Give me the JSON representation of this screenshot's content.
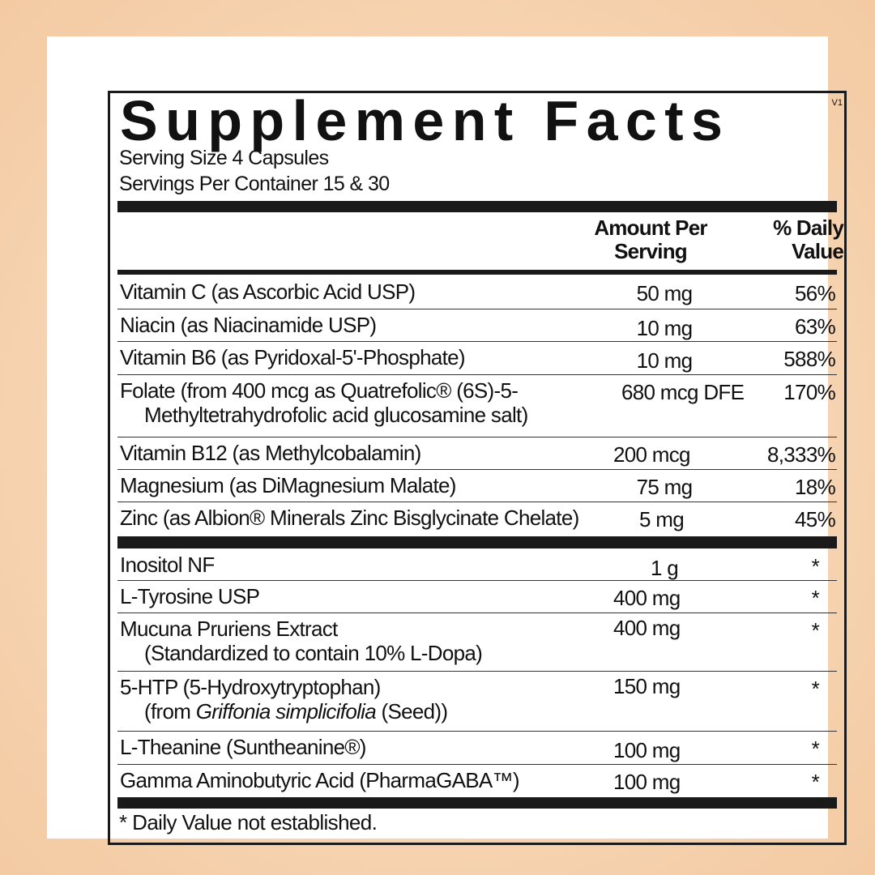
{
  "title": "Supplement Facts",
  "version": "V1",
  "serving_size": "Serving Size 4 Capsules",
  "servings_per_container": "Servings Per Container  15 & 30",
  "headers": {
    "amount_line1": "Amount Per",
    "amount_line2": "Serving",
    "dv_line1": "% Daily",
    "dv_line2": "Value"
  },
  "vitamins": [
    {
      "name": "Vitamin C (as Ascorbic Acid USP)",
      "amount": "50 mg",
      "dv": "56%"
    },
    {
      "name": "Niacin (as Niacinamide USP)",
      "amount": "10 mg",
      "dv": "63%"
    },
    {
      "name": "Vitamin B6 (as Pyridoxal-5'-Phosphate)",
      "amount": "10 mg",
      "dv": "588%"
    },
    {
      "name": "Folate (from 400 mcg as Quatrefolic® (6S)-5-",
      "sub": "Methyltetrahydrofolic acid glucosamine salt)",
      "amount": "680 mcg DFE",
      "dv": "170%"
    },
    {
      "name": "Vitamin B12 (as Methylcobalamin)",
      "amount": "200 mcg",
      "dv": "8,333%"
    },
    {
      "name": "Magnesium (as DiMagnesium Malate)",
      "amount": "75 mg",
      "dv": "18%"
    },
    {
      "name": "Zinc (as Albion® Minerals Zinc Bisglycinate Chelate)",
      "amount": "5 mg",
      "dv": "45%"
    }
  ],
  "others": [
    {
      "name": "Inositol NF",
      "amount": "1 g",
      "dv": "*"
    },
    {
      "name": "L-Tyrosine USP",
      "amount": "400 mg",
      "dv": "*"
    },
    {
      "name": "Mucuna Pruriens Extract",
      "sub": "(Standardized to contain 10% L-Dopa)",
      "amount": "400 mg",
      "dv": "*"
    },
    {
      "name": "5-HTP (5-Hydroxytryptophan)",
      "sub_pre": "(from ",
      "sub_italic": "Griffonia simplicifolia",
      "sub_post": " (Seed))",
      "amount": "150 mg",
      "dv": "*"
    },
    {
      "name": "L-Theanine (Suntheanine®)",
      "amount": "100 mg",
      "dv": "*"
    },
    {
      "name": "Gamma Aminobutyric Acid (PharmaGABA™)",
      "amount": "100 mg",
      "dv": "*"
    }
  ],
  "footnote": "* Daily Value not established."
}
